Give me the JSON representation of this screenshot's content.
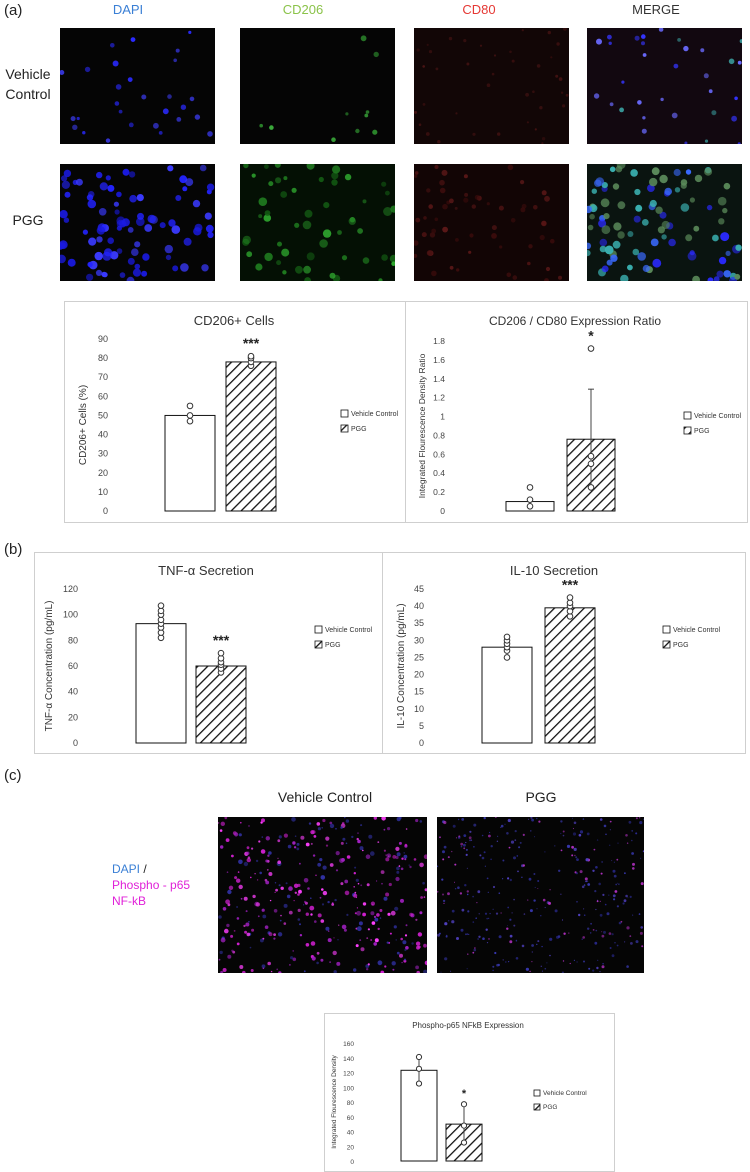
{
  "panels": {
    "a": "(a)",
    "b": "(b)",
    "c": "(c)"
  },
  "panel_a": {
    "channels": [
      {
        "label": "DAPI",
        "color": "#3a7fd5"
      },
      {
        "label": "CD206",
        "color": "#8bc34a"
      },
      {
        "label": "CD80",
        "color": "#e53935"
      },
      {
        "label": "MERGE",
        "color": "#333333"
      }
    ],
    "rows": [
      "Vehicle Control",
      "PGG"
    ]
  },
  "panel_c": {
    "col_titles": [
      "Vehicle Control",
      "PGG"
    ],
    "stain_label": {
      "dapi": "DAPI",
      "slash": " /",
      "line2": "Phospho - p65",
      "line3": "NF-kB"
    },
    "colors": {
      "dapi": "#3a7fd5",
      "p65": "#e020d8"
    }
  },
  "legend": {
    "control": "Vehicle Control",
    "pgg": "PGG"
  },
  "chart_data": [
    {
      "type": "bar",
      "title": "CD206+ Cells",
      "ylabel": "CD206+ Cells (%)",
      "ylim": [
        0,
        90
      ],
      "yticks": [
        "0",
        "10",
        "20",
        "30",
        "40",
        "50",
        "60",
        "70",
        "80",
        "90"
      ],
      "series": [
        {
          "name": "Vehicle Control",
          "value": 50,
          "points": [
            47,
            50,
            55
          ]
        },
        {
          "name": "PGG",
          "value": 78,
          "points": [
            76,
            78,
            80,
            81
          ]
        }
      ],
      "significance": "***"
    },
    {
      "type": "bar",
      "title": "CD206 / CD80  Expression Ratio",
      "ylabel": "Integrated Flourescence Density Ratio",
      "ylim": [
        0,
        1.8
      ],
      "yticks": [
        "0",
        "0.2",
        "0.4",
        "0.6",
        "0.8",
        "1",
        "1.2",
        "1.4",
        "1.6",
        "1.8"
      ],
      "series": [
        {
          "name": "Vehicle Control",
          "value": 0.1,
          "points": [
            0.05,
            0.12,
            0.25
          ]
        },
        {
          "name": "PGG",
          "value": 0.76,
          "error": 0.53,
          "points": [
            0.25,
            0.5,
            0.58,
            1.72
          ]
        }
      ],
      "significance": "*"
    },
    {
      "type": "bar",
      "title": "TNF-α Secretion",
      "ylabel": "TNF-α Concentration (pg/mL)",
      "ylim": [
        0,
        120
      ],
      "yticks": [
        "0",
        "20",
        "40",
        "60",
        "80",
        "100",
        "120"
      ],
      "series": [
        {
          "name": "Vehicle Control",
          "value": 93,
          "points": [
            82,
            86,
            90,
            93,
            96,
            100,
            103,
            107
          ]
        },
        {
          "name": "PGG",
          "value": 60,
          "points": [
            55,
            58,
            61,
            63,
            66,
            70
          ]
        }
      ],
      "significance": "***"
    },
    {
      "type": "bar",
      "title": "IL-10 Secretion",
      "ylabel": "IL-10 Concentration (pg/mL)",
      "ylim": [
        0,
        45
      ],
      "yticks": [
        "0",
        "5",
        "10",
        "15",
        "20",
        "25",
        "30",
        "35",
        "40",
        "45"
      ],
      "series": [
        {
          "name": "Vehicle Control",
          "value": 28,
          "points": [
            25,
            27,
            28,
            29,
            30,
            31
          ]
        },
        {
          "name": "PGG",
          "value": 39.5,
          "points": [
            37,
            38.5,
            40,
            41,
            42.5
          ]
        }
      ],
      "significance": "***"
    },
    {
      "type": "bar",
      "title": "Phospho-p65 NFkB Expression",
      "ylabel": "Integrated Flourescence Density",
      "ylim": [
        0,
        160
      ],
      "yticks": [
        "0",
        "20",
        "40",
        "60",
        "80",
        "100",
        "120",
        "140",
        "160"
      ],
      "series": [
        {
          "name": "Vehicle Control",
          "value": 123,
          "error": 18,
          "points": [
            105,
            125,
            141
          ]
        },
        {
          "name": "PGG",
          "value": 50,
          "error": 27,
          "points": [
            25,
            48,
            77
          ]
        }
      ],
      "significance": "*"
    }
  ]
}
